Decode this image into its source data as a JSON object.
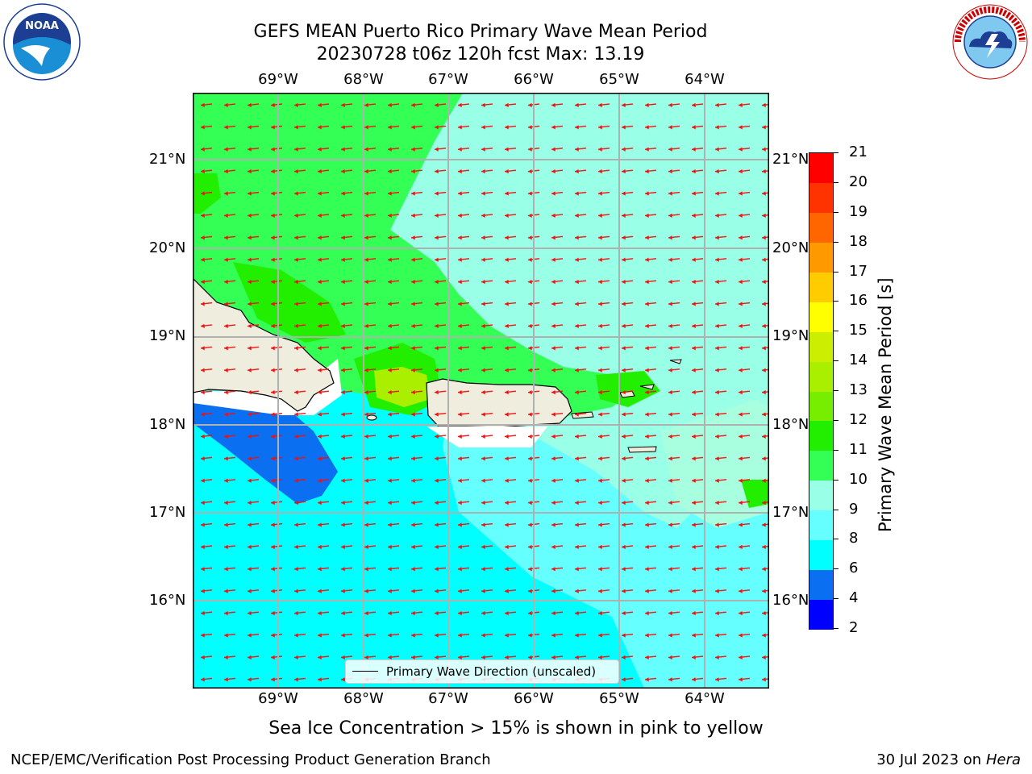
{
  "title": {
    "line1": "GEFS MEAN Puerto Rico Primary Wave Mean Period",
    "line2": "20230728 t06z 120h fcst   Max: 13.19"
  },
  "logos": {
    "left": "NOAA",
    "left_ring": "NATIONAL OCEANIC AND ATMOSPHERIC ADMINISTRATION · U.S. DEPARTMENT OF COMMERCE",
    "right_ring": "NATIONAL WEATHER SERVICE"
  },
  "map": {
    "lon_ticks": [
      "69°W",
      "68°W",
      "67°W",
      "66°W",
      "65°W",
      "64°W"
    ],
    "lat_ticks": [
      "21°N",
      "20°N",
      "19°N",
      "18°N",
      "17°N",
      "16°N"
    ],
    "legend_label": "Primary Wave Direction (unscaled)",
    "wave_direction": "toward west / west-northwest"
  },
  "colorbar": {
    "label": "Primary Wave Mean Period [s]",
    "ticks": [
      "2",
      "4",
      "6",
      "8",
      "9",
      "10",
      "11",
      "12",
      "13",
      "14",
      "15",
      "16",
      "17",
      "18",
      "19",
      "20",
      "21"
    ],
    "colors": [
      "#0000ff",
      "#0a6ff0",
      "#00ffff",
      "#66ffff",
      "#99ffe6",
      "#33ff55",
      "#22ee00",
      "#77ee00",
      "#aaee00",
      "#ccee00",
      "#ffff00",
      "#ffcc00",
      "#ff9900",
      "#ff6600",
      "#ff3300",
      "#ff0000"
    ]
  },
  "sea_ice_note": "Sea Ice Concentration > 15% is shown in pink to yellow",
  "footer": {
    "left": "NCEP/EMC/Verification Post Processing Product Generation Branch",
    "right_date": "30 Jul 2023 on ",
    "right_host": "Hera"
  }
}
